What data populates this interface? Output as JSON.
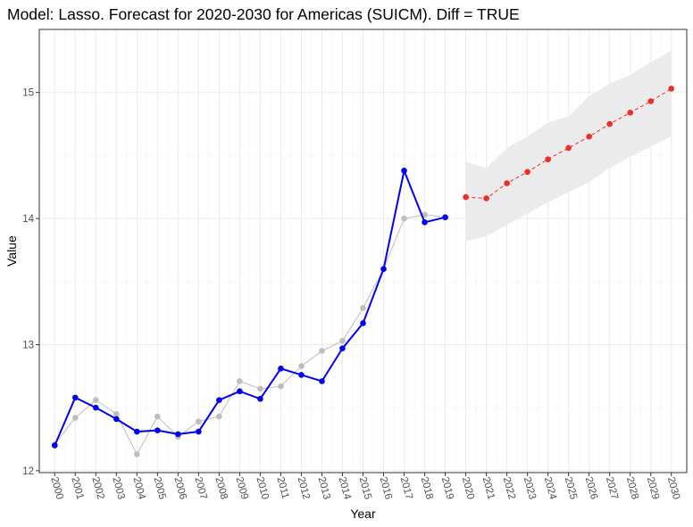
{
  "chart_data": {
    "type": "line",
    "title": "Model: Lasso. Forecast for 2020-2030 for Americas (SUICM). Diff = TRUE",
    "xlabel": "Year",
    "ylabel": "Value",
    "xlim": [
      2000,
      2030
    ],
    "ylim": [
      12,
      15.5
    ],
    "x_ticks": [
      2000,
      2001,
      2002,
      2003,
      2004,
      2005,
      2006,
      2007,
      2008,
      2009,
      2010,
      2011,
      2012,
      2013,
      2014,
      2015,
      2016,
      2017,
      2018,
      2019,
      2020,
      2021,
      2022,
      2023,
      2024,
      2025,
      2026,
      2027,
      2028,
      2029,
      2030
    ],
    "y_ticks": [
      12,
      13,
      14,
      15
    ],
    "grid": true,
    "legend": "none",
    "series": [
      {
        "role": "actual",
        "color": "#bebebe",
        "style": "solid-line-with-points",
        "x": [
          2000,
          2001,
          2002,
          2003,
          2004,
          2005,
          2006,
          2007,
          2008,
          2009,
          2010,
          2011,
          2012,
          2013,
          2014,
          2015,
          2016,
          2017,
          2018,
          2019
        ],
        "values": [
          12.21,
          12.42,
          12.56,
          12.45,
          12.13,
          12.43,
          12.27,
          12.39,
          12.43,
          12.71,
          12.65,
          12.67,
          12.83,
          12.95,
          13.03,
          13.29,
          13.6,
          14.0,
          14.03,
          14.01
        ]
      },
      {
        "role": "fitted",
        "color": "#0000ee",
        "style": "solid-line-with-points",
        "x": [
          2000,
          2001,
          2002,
          2003,
          2004,
          2005,
          2006,
          2007,
          2008,
          2009,
          2010,
          2011,
          2012,
          2013,
          2014,
          2015,
          2016,
          2017,
          2018,
          2019
        ],
        "values": [
          12.2,
          12.58,
          12.5,
          12.41,
          12.31,
          12.32,
          12.29,
          12.31,
          12.56,
          12.63,
          12.57,
          12.81,
          12.76,
          12.71,
          12.97,
          13.17,
          13.6,
          14.38,
          13.97,
          14.01
        ]
      },
      {
        "role": "forecast",
        "color": "#ee2c2c",
        "style": "dashed-line-with-points",
        "x": [
          2020,
          2021,
          2022,
          2023,
          2024,
          2025,
          2026,
          2027,
          2028,
          2029,
          2030
        ],
        "values": [
          14.17,
          14.16,
          14.28,
          14.37,
          14.47,
          14.56,
          14.65,
          14.75,
          14.84,
          14.93,
          15.03
        ]
      }
    ],
    "confidence_band": {
      "color": "#ebebeb",
      "x": [
        2020,
        2021,
        2022,
        2023,
        2024,
        2025,
        2026,
        2027,
        2028,
        2029,
        2030
      ],
      "lower": [
        13.82,
        13.86,
        13.95,
        14.04,
        14.13,
        14.21,
        14.29,
        14.4,
        14.49,
        14.57,
        14.65
      ],
      "upper": [
        14.45,
        14.4,
        14.56,
        14.65,
        14.76,
        14.81,
        14.97,
        15.07,
        15.14,
        15.24,
        15.33
      ]
    }
  }
}
